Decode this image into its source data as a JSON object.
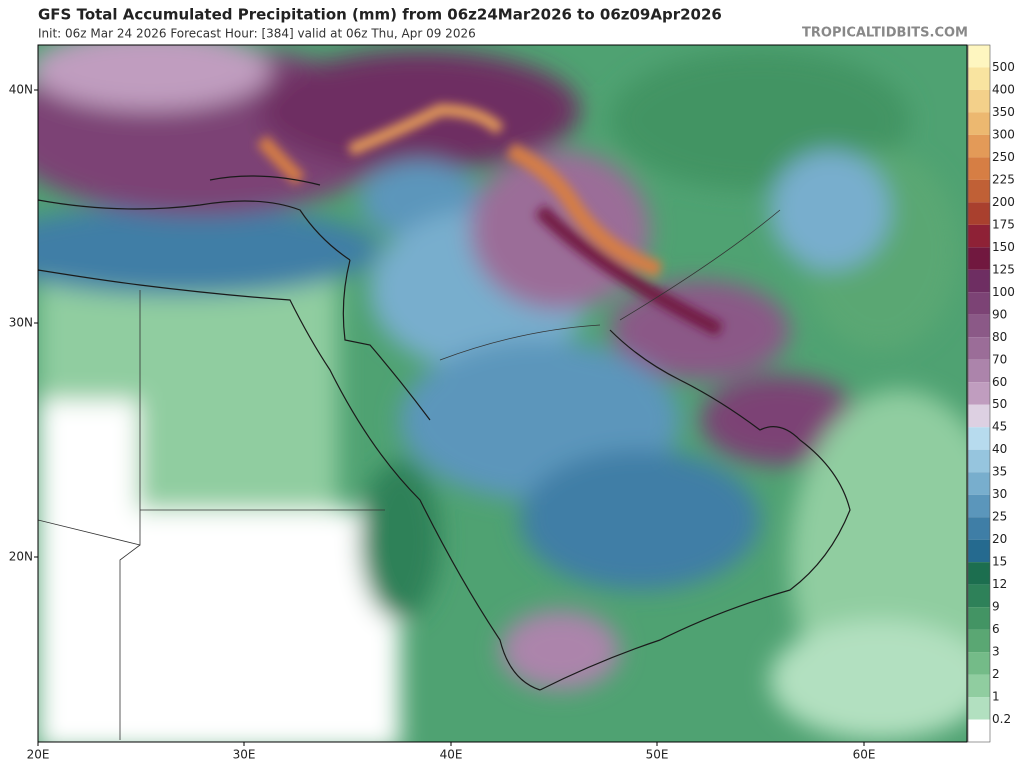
{
  "header": {
    "title": "GFS Total Accumulated Precipitation (mm) from 06z24Mar2026 to 06z09Apr2026",
    "subtitle": "Init: 06z Mar 24 2026   Forecast Hour: [384]   valid at 06z Thu, Apr 09 2026",
    "watermark": "TROPICALTIDBITS.COM"
  },
  "map": {
    "lat_labels": [
      "40N",
      "30N",
      "20N"
    ],
    "lon_labels": [
      "20E",
      "30E",
      "40E",
      "50E",
      "60E"
    ]
  },
  "colorbar": {
    "levels": [
      500,
      400,
      350,
      300,
      250,
      225,
      200,
      175,
      150,
      125,
      100,
      90,
      80,
      70,
      60,
      50,
      45,
      40,
      35,
      30,
      25,
      20,
      15,
      12,
      9,
      6,
      3,
      2,
      1,
      0.2
    ],
    "colors": [
      "#fef6c0",
      "#f9e4a0",
      "#f3d08a",
      "#ecb870",
      "#e39a58",
      "#d67e44",
      "#c06036",
      "#a9402e",
      "#8e2136",
      "#71183f",
      "#6e2e62",
      "#7c4375",
      "#8b5987",
      "#9b6d98",
      "#ac84ab",
      "#c09dbf",
      "#ddd0e2",
      "#b7dbee",
      "#96c5de",
      "#78aecd",
      "#5b96bb",
      "#3f7ea6",
      "#256a8f",
      "#1c6e4f",
      "#2e8159",
      "#439464",
      "#5aa773",
      "#74bb88",
      "#90cda0",
      "#b2e0c0",
      "#ffffff"
    ]
  }
}
